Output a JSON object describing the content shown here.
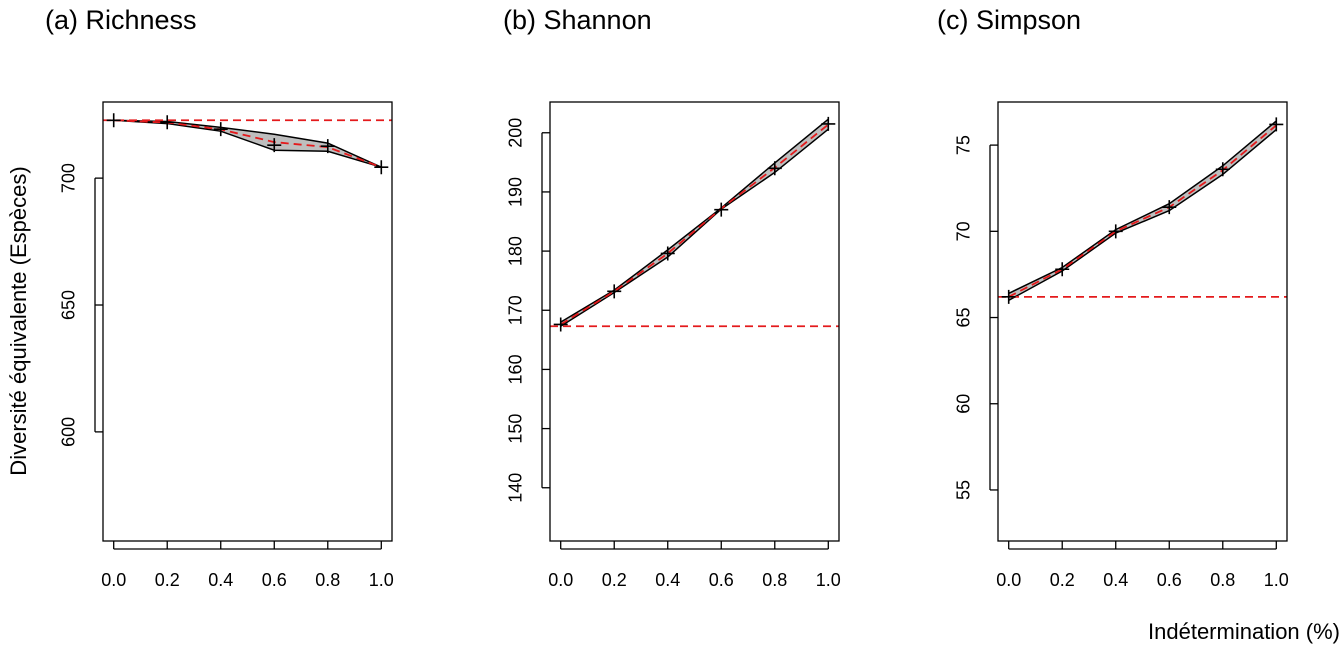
{
  "chart_data": [
    {
      "type": "line",
      "title": "(a) Richness",
      "ylabel": "Diversité équivalente (Espèces)",
      "x": [
        0,
        0.2,
        0.4,
        0.6,
        0.8,
        1
      ],
      "observed": [
        722.8,
        722,
        719.3,
        713,
        712.6,
        704.3
      ],
      "mean": [
        722.8,
        721.9,
        719.2,
        714.2,
        712.2,
        704.3
      ],
      "upper": [
        722.8,
        722.3,
        720,
        717.3,
        713.8,
        704.3
      ],
      "lower": [
        722.8,
        721.5,
        718.5,
        711,
        710.6,
        704.3
      ],
      "reference": 722.8,
      "xlim": [
        -0.04,
        1.04
      ],
      "ylim": [
        557,
        730
      ],
      "xticks": [
        {
          "value": 0,
          "label": "0.0"
        },
        0.2,
        0.4,
        0.6,
        0.8,
        {
          "value": 1,
          "label": "1.0"
        }
      ],
      "yticks": [
        600,
        650,
        700
      ],
      "line_color": "#000000",
      "mean_color": "#e41a1c",
      "fill_color": "#bebebe"
    },
    {
      "type": "line",
      "title": "(b) Shannon",
      "x": [
        0,
        0.2,
        0.4,
        0.6,
        0.8,
        1
      ],
      "observed": [
        167.6,
        173.2,
        179.6,
        187,
        194,
        201.5
      ],
      "mean": [
        167.6,
        173.2,
        179.6,
        187.2,
        194.1,
        201.4
      ],
      "upper": [
        168,
        173.4,
        180.2,
        187.3,
        194.9,
        202.3
      ],
      "lower": [
        167.3,
        173,
        179,
        187.1,
        193.3,
        200.6
      ],
      "reference": 167.3,
      "xlim": [
        -0.04,
        1.04
      ],
      "ylim": [
        131,
        205.2
      ],
      "xticks": [
        {
          "value": 0,
          "label": "0.0"
        },
        0.2,
        0.4,
        0.6,
        0.8,
        {
          "value": 1,
          "label": "1.0"
        }
      ],
      "yticks": [
        140,
        150,
        160,
        170,
        180,
        190,
        200
      ],
      "line_color": "#000000",
      "mean_color": "#e41a1c",
      "fill_color": "#bebebe"
    },
    {
      "type": "line",
      "title": "(c) Simpson",
      "xlabel": "Indétermination (%)",
      "x": [
        0,
        0.2,
        0.4,
        0.6,
        0.8,
        1
      ],
      "observed": [
        66.2,
        67.8,
        70,
        71.4,
        73.6,
        76.2
      ],
      "mean": [
        66.2,
        67.8,
        70,
        71.4,
        73.55,
        76.15
      ],
      "upper": [
        66.4,
        67.9,
        70.1,
        71.6,
        73.8,
        76.4
      ],
      "lower": [
        66,
        67.7,
        69.9,
        71.2,
        73.3,
        75.9
      ],
      "reference": 66.2,
      "xlim": [
        -0.04,
        1.04
      ],
      "ylim": [
        52.04,
        77.5
      ],
      "xticks": [
        {
          "value": 0,
          "label": "0.0"
        },
        0.2,
        0.4,
        0.6,
        0.8,
        {
          "value": 1,
          "label": "1.0"
        }
      ],
      "yticks": [
        55,
        60,
        65,
        70,
        75
      ],
      "line_color": "#000000",
      "mean_color": "#e41a1c",
      "fill_color": "#bebebe"
    }
  ]
}
